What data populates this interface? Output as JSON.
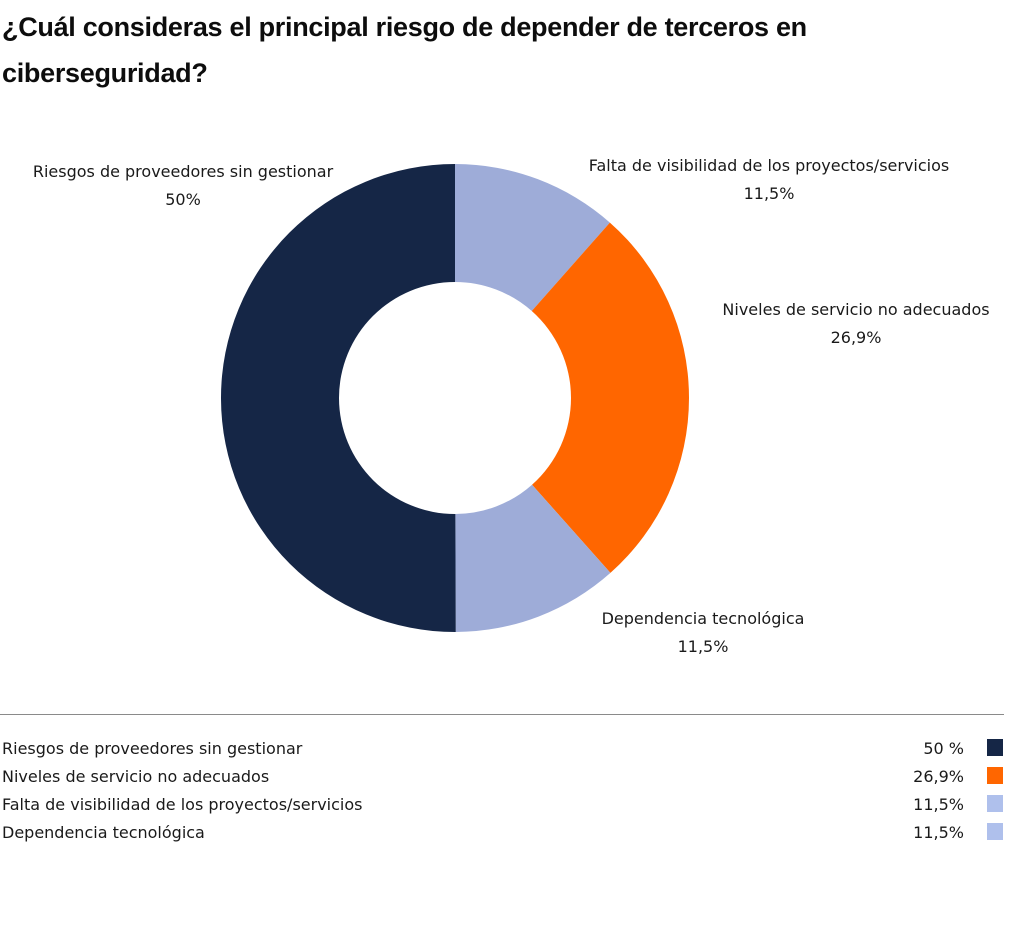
{
  "chart_data": {
    "type": "pie",
    "variant": "donut",
    "title": "¿Cuál consideras el principal riesgo de depender de terceros en ciberseguridad?",
    "unit": "%",
    "slices": [
      {
        "label": "Falta de visibilidad de los proyectos/servicios",
        "value": 11.5,
        "value_label": "11,5%",
        "color": "#9eacd8"
      },
      {
        "label": "Niveles de servicio no adecuados",
        "value": 26.9,
        "value_label": "26,9%",
        "color": "#ff6600"
      },
      {
        "label": "Dependencia tecnológica",
        "value": 11.5,
        "value_label": "11,5%",
        "color": "#9eacd8"
      },
      {
        "label": "Riesgos de proveedores sin gestionar",
        "value": 50,
        "value_label": "50%",
        "color": "#152646"
      }
    ],
    "legend": {
      "placement": "bottom",
      "items": [
        {
          "label": "Riesgos de proveedores sin gestionar",
          "value_label": "50 %",
          "color": "#152646"
        },
        {
          "label": "Niveles de servicio no adecuados",
          "value_label": "26,9%",
          "color": "#ff6600"
        },
        {
          "label": "Falta de visibilidad de los proyectos/servicios",
          "value_label": "11,5%",
          "color": "#afc0ec"
        },
        {
          "label": "Dependencia tecnológica",
          "value_label": "11,5%",
          "color": "#afc0ec"
        }
      ]
    }
  }
}
